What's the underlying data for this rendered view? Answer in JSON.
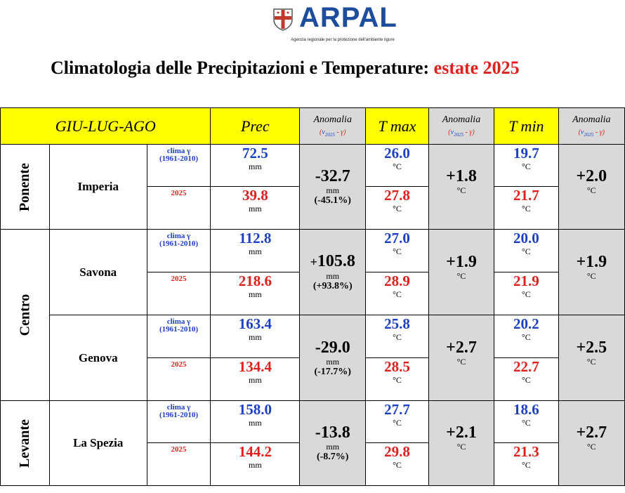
{
  "header": {
    "brand": "ARPAL",
    "tagline": "Agenzia regionale per la protezione dell'ambiente ligure",
    "title_main": "Climatologia delle Precipitazioni e Temperature: ",
    "title_season": "estate 2025"
  },
  "columns": {
    "period": "GIU-LUG-AGO",
    "prec": "Prec",
    "tmax": "T max",
    "tmin": "T min",
    "anomalia": "Anomalia",
    "anom_sub_open": "(",
    "anom_sub_v": "v",
    "anom_sub_year": "2025",
    "anom_sub_rest": " - γ)"
  },
  "labels": {
    "clima": "clima γ",
    "clima_period": "(1961-2010)",
    "year": "2025",
    "unit_mm": "mm",
    "unit_c": "°C"
  },
  "areas": {
    "ponente": "Ponente",
    "centro": "Centro",
    "levante": "Levante"
  },
  "stations": [
    {
      "name": "Imperia",
      "prec_clima": "72.5",
      "prec_2025": "39.8",
      "prec_anom": "-32.7",
      "prec_anom_pct": "(-45.1%)",
      "tmax_clima": "26.0",
      "tmax_2025": "27.8",
      "tmax_anom": "+1.8",
      "tmin_clima": "19.7",
      "tmin_2025": "21.7",
      "tmin_anom": "+2.0"
    },
    {
      "name": "Savona",
      "prec_clima": "112.8",
      "prec_2025": "218.6",
      "prec_anom_sign": "+",
      "prec_anom": "105.8",
      "prec_anom_pct": "(+93.8%)",
      "tmax_clima": "27.0",
      "tmax_2025": "28.9",
      "tmax_anom": "+1.9",
      "tmin_clima": "20.0",
      "tmin_2025": "21.9",
      "tmin_anom": "+1.9"
    },
    {
      "name": "Genova",
      "prec_clima": "163.4",
      "prec_2025": "134.4",
      "prec_anom": "-29.0",
      "prec_anom_pct": "(-17.7%)",
      "tmax_clima": "25.8",
      "tmax_2025": "28.5",
      "tmax_anom": "+2.7",
      "tmin_clima": "20.2",
      "tmin_2025": "22.7",
      "tmin_anom": "+2.5"
    },
    {
      "name": "La Spezia",
      "prec_clima": "158.0",
      "prec_2025": "144.2",
      "prec_anom": "-13.8",
      "prec_anom_pct": "(-8.7%)",
      "tmax_clima": "27.7",
      "tmax_2025": "29.8",
      "tmax_anom": "+2.1",
      "tmin_clima": "18.6",
      "tmin_2025": "21.3",
      "tmin_anom": "+2.7"
    }
  ],
  "colors": {
    "blue": "#1d3fc4",
    "red": "#e0201c",
    "header_yellow": "#ffff00",
    "anomaly_grey": "#d9d9d9",
    "brand": "#1d4e9e"
  }
}
